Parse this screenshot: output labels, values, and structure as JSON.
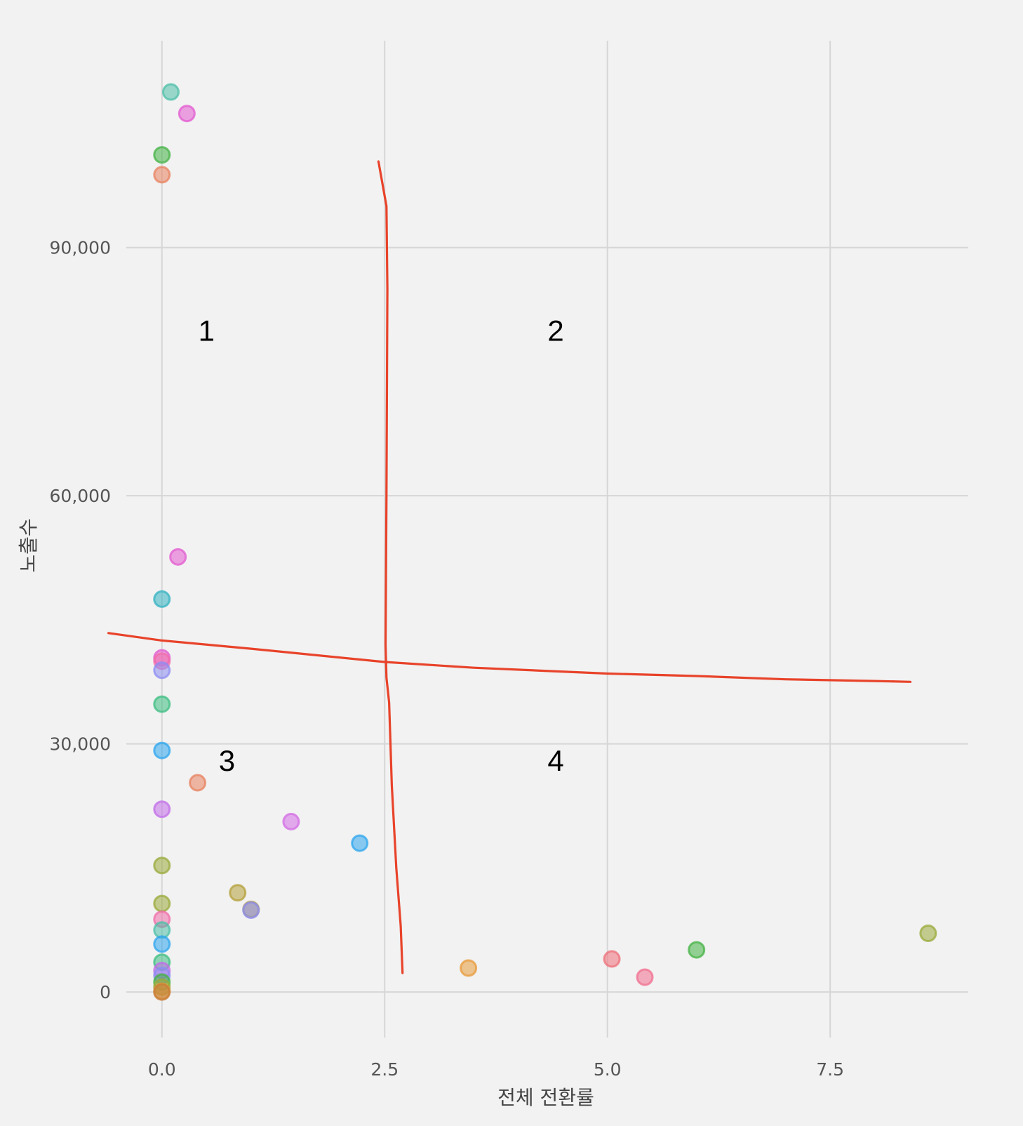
{
  "chart_data": {
    "type": "scatter",
    "xlabel": "전체 전환률",
    "ylabel": "노출수",
    "xlim": [
      -0.4,
      9.05
    ],
    "ylim": [
      -5500,
      115000
    ],
    "x_ticks": [
      0.0,
      2.5,
      5.0,
      7.5
    ],
    "x_tick_labels": [
      "0.0",
      "2.5",
      "5.0",
      "7.5"
    ],
    "y_ticks": [
      0,
      30000,
      60000,
      90000
    ],
    "y_tick_labels": [
      "0",
      "30,000",
      "60,000",
      "90,000"
    ],
    "grid": true,
    "legend": "none",
    "points": [
      {
        "x": 0.1,
        "y": 108800,
        "color": "#4dbfa8"
      },
      {
        "x": 0.28,
        "y": 106200,
        "color": "#e35ad0"
      },
      {
        "x": 0.0,
        "y": 101200,
        "color": "#44b344"
      },
      {
        "x": 0.0,
        "y": 98800,
        "color": "#e8825f"
      },
      {
        "x": 0.18,
        "y": 52600,
        "color": "#e35ad0"
      },
      {
        "x": 0.0,
        "y": 47500,
        "color": "#33b2c2"
      },
      {
        "x": 0.0,
        "y": 40400,
        "color": "#e35ad0"
      },
      {
        "x": 0.0,
        "y": 40000,
        "color": "#f06da8"
      },
      {
        "x": 0.0,
        "y": 38900,
        "color": "#8c8cf2"
      },
      {
        "x": 0.0,
        "y": 34800,
        "color": "#3dbd82"
      },
      {
        "x": 0.0,
        "y": 29200,
        "color": "#2ea6ee"
      },
      {
        "x": 0.4,
        "y": 25300,
        "color": "#e8825f"
      },
      {
        "x": 0.0,
        "y": 22100,
        "color": "#c26ee8"
      },
      {
        "x": 1.45,
        "y": 20600,
        "color": "#d36be6"
      },
      {
        "x": 2.22,
        "y": 18000,
        "color": "#2ea6ee"
      },
      {
        "x": 0.0,
        "y": 15300,
        "color": "#9aa93a"
      },
      {
        "x": 0.85,
        "y": 12000,
        "color": "#b4a03a"
      },
      {
        "x": 0.0,
        "y": 10700,
        "color": "#9aa93a"
      },
      {
        "x": 1.0,
        "y": 10000,
        "color": "#b4a03a"
      },
      {
        "x": 1.0,
        "y": 9900,
        "color": "#8c8cf2"
      },
      {
        "x": 0.0,
        "y": 8800,
        "color": "#f06da8"
      },
      {
        "x": 0.0,
        "y": 7500,
        "color": "#4dbfa8"
      },
      {
        "x": 8.6,
        "y": 7100,
        "color": "#9aa93a"
      },
      {
        "x": 0.0,
        "y": 5800,
        "color": "#2ea6ee"
      },
      {
        "x": 6.0,
        "y": 5100,
        "color": "#44b344"
      },
      {
        "x": 5.05,
        "y": 4000,
        "color": "#ee6f7a"
      },
      {
        "x": 0.0,
        "y": 3600,
        "color": "#3dbd82"
      },
      {
        "x": 3.44,
        "y": 2900,
        "color": "#e89a3a"
      },
      {
        "x": 0.0,
        "y": 2600,
        "color": "#c26ee8"
      },
      {
        "x": 0.0,
        "y": 2000,
        "color": "#8c8cf2"
      },
      {
        "x": 5.42,
        "y": 1800,
        "color": "#f06d8e"
      },
      {
        "x": 0.0,
        "y": 1200,
        "color": "#44b344"
      },
      {
        "x": 0.0,
        "y": 600,
        "color": "#9aa93a"
      },
      {
        "x": 0.0,
        "y": 100,
        "color": "#e89a3a"
      },
      {
        "x": 0.0,
        "y": 0,
        "color": "#c77d3a"
      }
    ],
    "annotations": {
      "quadrant_labels": [
        {
          "text": "1",
          "x": 0.5,
          "y": 80000
        },
        {
          "text": "2",
          "x": 4.42,
          "y": 80000
        },
        {
          "text": "3",
          "x": 0.73,
          "y": 28000
        },
        {
          "text": "4",
          "x": 4.42,
          "y": 28000
        }
      ],
      "line_color": "#e8432a",
      "vertical_line": [
        [
          2.43,
          100400
        ],
        [
          2.52,
          95000
        ],
        [
          2.53,
          85000
        ],
        [
          2.52,
          60000
        ],
        [
          2.51,
          42000
        ],
        [
          2.52,
          38000
        ],
        [
          2.55,
          35000
        ],
        [
          2.58,
          25000
        ],
        [
          2.63,
          15000
        ],
        [
          2.68,
          8000
        ],
        [
          2.7,
          2300
        ]
      ],
      "horizontal_line": [
        [
          -0.6,
          43400
        ],
        [
          0.0,
          42500
        ],
        [
          1.0,
          41500
        ],
        [
          2.5,
          39900
        ],
        [
          3.5,
          39200
        ],
        [
          5.0,
          38500
        ],
        [
          6.0,
          38200
        ],
        [
          7.0,
          37800
        ],
        [
          8.0,
          37600
        ],
        [
          8.4,
          37500
        ]
      ]
    }
  }
}
